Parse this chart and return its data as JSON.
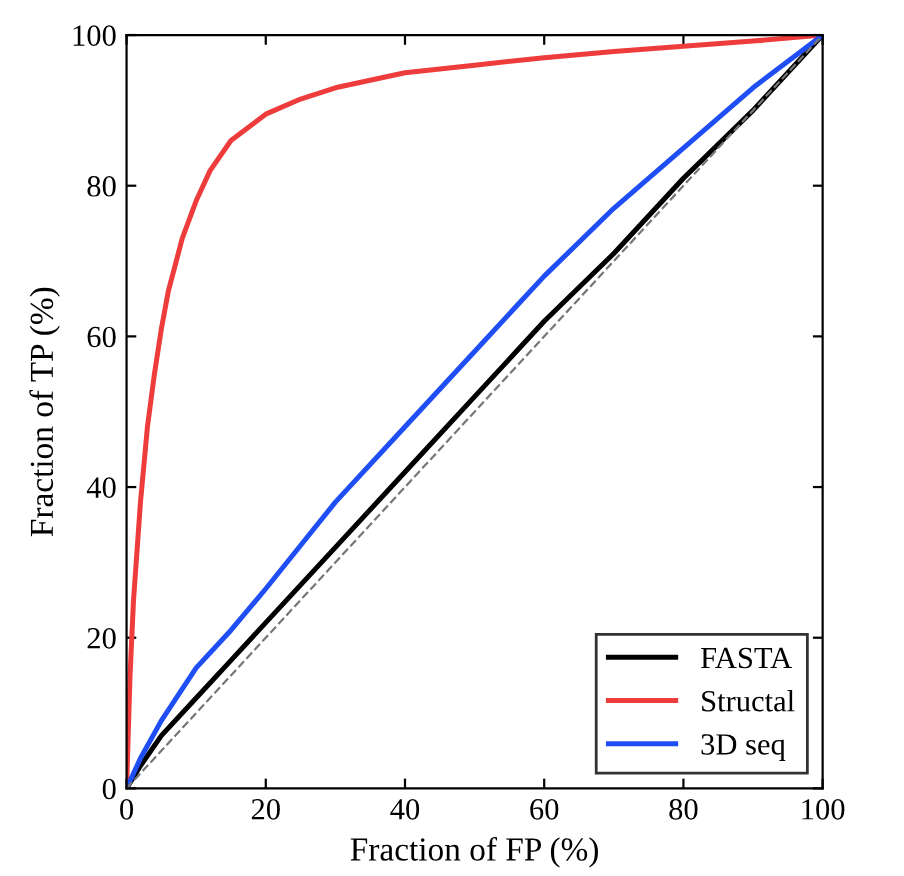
{
  "chart_data": {
    "type": "line",
    "xlabel": "Fraction of FP (%)",
    "ylabel": "Fraction of TP (%)",
    "xlim": [
      0,
      100
    ],
    "ylim": [
      0,
      100
    ],
    "xticks": [
      0,
      20,
      40,
      60,
      80,
      100
    ],
    "yticks": [
      0,
      20,
      40,
      60,
      80,
      100
    ],
    "grid": false,
    "legend": "bottom right",
    "marker": "none",
    "series": [
      {
        "name": "FASTA",
        "color": "#000000",
        "x": [
          0,
          2,
          5,
          10,
          15,
          20,
          30,
          40,
          50,
          60,
          70,
          80,
          90,
          100
        ],
        "values": [
          0,
          3,
          7,
          12,
          17,
          22,
          32,
          42,
          52,
          62,
          71,
          81,
          90,
          100
        ]
      },
      {
        "name": "Structal",
        "color": "#ee3b3b",
        "x": [
          0,
          0.5,
          1,
          2,
          3,
          4,
          5,
          6,
          8,
          10,
          12,
          15,
          20,
          25,
          30,
          40,
          50,
          60,
          70,
          80,
          90,
          100
        ],
        "values": [
          0,
          15,
          25,
          38,
          48,
          55,
          61,
          66,
          73,
          78,
          82,
          86,
          89.5,
          91.5,
          93,
          95,
          96,
          97,
          97.8,
          98.5,
          99.2,
          100
        ]
      },
      {
        "name": "3D seq",
        "color": "#1f4ef5",
        "x": [
          0,
          2,
          5,
          10,
          15,
          20,
          30,
          40,
          50,
          60,
          70,
          80,
          90,
          100
        ],
        "values": [
          0,
          4,
          9,
          16,
          21,
          26.5,
          38,
          48,
          58,
          68,
          77,
          85,
          93,
          100
        ]
      },
      {
        "color": "#777777",
        "line_style": "dashed",
        "x": [
          0,
          100
        ],
        "values": [
          0,
          100
        ]
      }
    ]
  }
}
